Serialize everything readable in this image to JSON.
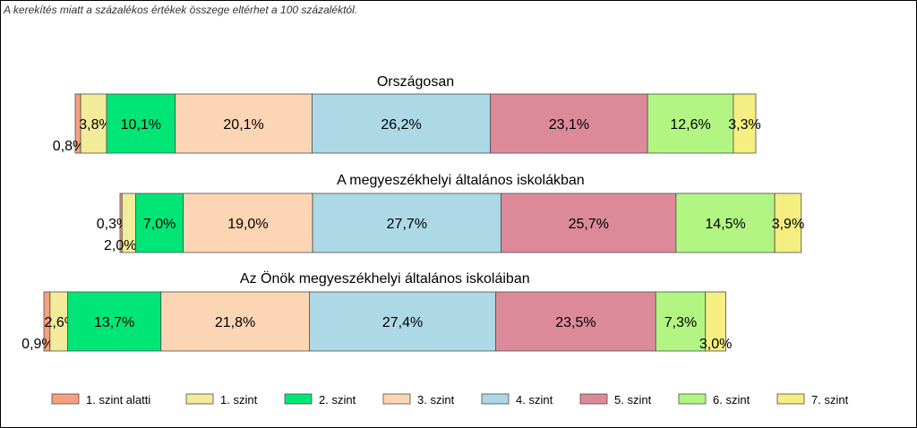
{
  "note": "A kerekítés miatt a  százalékos értékek összege eltérhet a 100 százaléktól.",
  "chart_data": {
    "type": "bar",
    "orientation": "horizontal",
    "stacked": true,
    "categories": [
      "Országosan",
      "A megyeszékhelyi általános iskolákban",
      "Az Önök megyeszékhelyi általános iskoláiban"
    ],
    "series": [
      {
        "name": "1. szint alatti",
        "color": "#f7a07e",
        "values": [
          0.8,
          0.3,
          0.9
        ],
        "labels": [
          "0,8%",
          "0,3%",
          "0,9%"
        ]
      },
      {
        "name": "1. szint",
        "color": "#f2eb9a",
        "values": [
          3.8,
          2.0,
          2.6
        ],
        "labels": [
          "3,8%",
          "2,0%",
          "2,6%"
        ]
      },
      {
        "name": "2. szint",
        "color": "#00e676",
        "values": [
          10.1,
          7.0,
          13.7
        ],
        "labels": [
          "10,1%",
          "7,0%",
          "13,7%"
        ]
      },
      {
        "name": "3. szint",
        "color": "#fcd6b4",
        "values": [
          20.1,
          19.0,
          21.8
        ],
        "labels": [
          "20,1%",
          "19,0%",
          "21,8%"
        ]
      },
      {
        "name": "4. szint",
        "color": "#add8e6",
        "values": [
          26.2,
          27.7,
          27.4
        ],
        "labels": [
          "26,2%",
          "27,7%",
          "27,4%"
        ]
      },
      {
        "name": "5. szint",
        "color": "#dc8a9a",
        "values": [
          23.1,
          25.7,
          23.5
        ],
        "labels": [
          "23,1%",
          "25,7%",
          "23,5%"
        ]
      },
      {
        "name": "6. szint",
        "color": "#b3f582",
        "values": [
          12.6,
          14.5,
          7.3
        ],
        "labels": [
          "12,6%",
          "14,5%",
          "7,3%"
        ]
      },
      {
        "name": "7. szint",
        "color": "#f5ee80",
        "values": [
          3.3,
          3.9,
          3.0
        ],
        "labels": [
          "3,3%",
          "3,9%",
          "3,0%"
        ]
      }
    ],
    "grid": false,
    "legend": "bottom"
  }
}
